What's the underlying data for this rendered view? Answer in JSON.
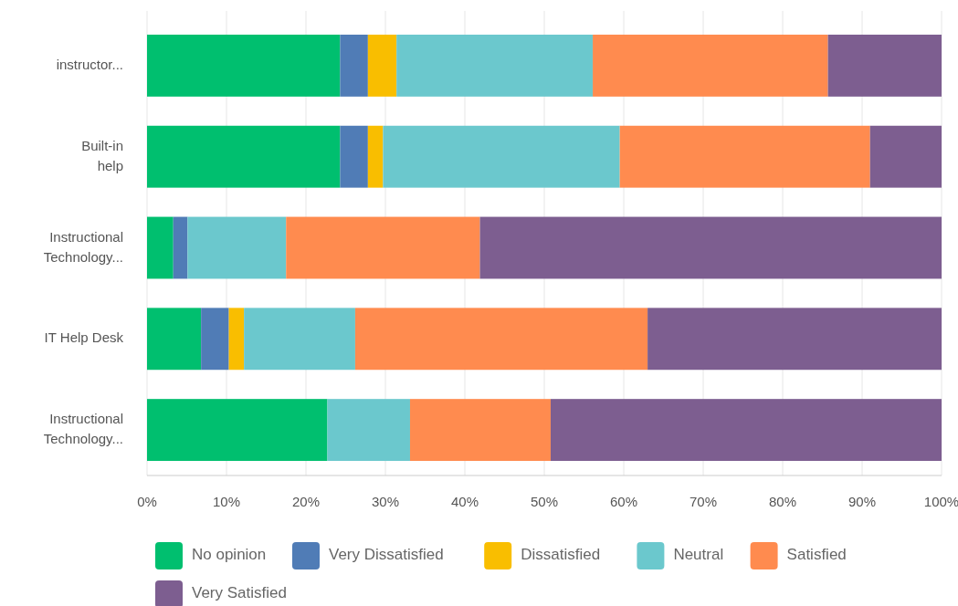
{
  "chart_data": {
    "type": "bar",
    "orientation": "horizontal",
    "stacked": true,
    "categories": [
      "instructor...",
      "Built-in help",
      "Instructional Technology...",
      "IT Help Desk",
      "Instructional Technology..."
    ],
    "series": [
      {
        "name": "No opinion",
        "color": "#00bf6f",
        "values": [
          24.3,
          24.3,
          3.3,
          6.8,
          22.7
        ]
      },
      {
        "name": "Very Dissatisfied",
        "color": "#507cb6",
        "values": [
          3.5,
          3.5,
          1.8,
          3.5,
          0
        ]
      },
      {
        "name": "Dissatisfied",
        "color": "#f9be00",
        "values": [
          3.6,
          1.9,
          0,
          1.9,
          0
        ]
      },
      {
        "name": "Neutral",
        "color": "#6bc8cd",
        "values": [
          24.7,
          29.8,
          12.4,
          14.0,
          10.4
        ]
      },
      {
        "name": "Satisfied",
        "color": "#ff8b4f",
        "values": [
          29.6,
          31.5,
          24.4,
          36.8,
          17.7
        ]
      },
      {
        "name": "Very Satisfied",
        "color": "#7d5e90",
        "values": [
          14.3,
          9.0,
          58.1,
          37.0,
          49.2
        ]
      }
    ],
    "xlim": [
      0,
      100
    ],
    "xticks": [
      {
        "value": 0,
        "label": "0%"
      },
      {
        "value": 10,
        "label": "10%"
      },
      {
        "value": 20,
        "label": "20%"
      },
      {
        "value": 30,
        "label": "30%"
      },
      {
        "value": 40,
        "label": "40%"
      },
      {
        "value": 50,
        "label": "50%"
      },
      {
        "value": 60,
        "label": "60%"
      },
      {
        "value": 70,
        "label": "70%"
      },
      {
        "value": 80,
        "label": "80%"
      },
      {
        "value": 90,
        "label": "90%"
      },
      {
        "value": 100,
        "label": "100%"
      }
    ],
    "grid": "x",
    "legend": "bottom"
  }
}
